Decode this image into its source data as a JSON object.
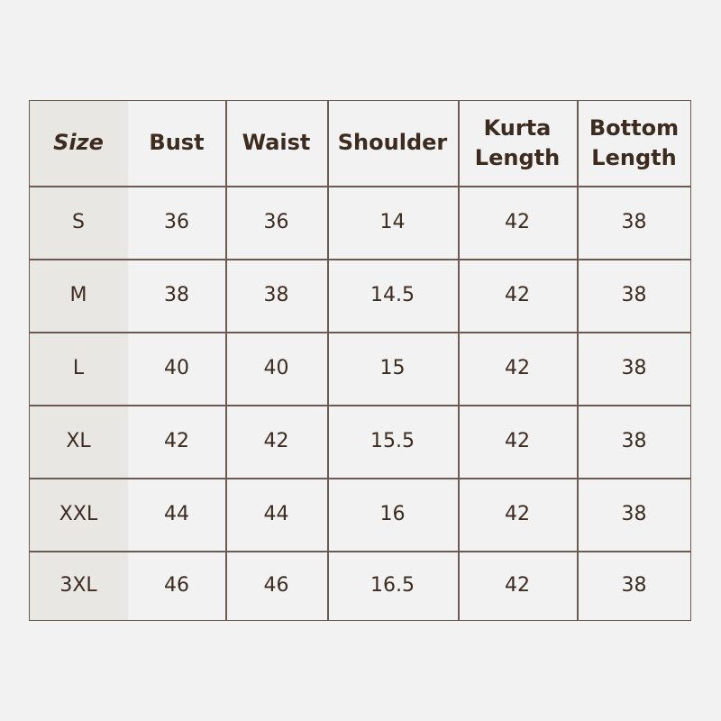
{
  "colors": {
    "background": "#f2f2f2",
    "size_column": "#e9e7e3",
    "border": "#6a5a52",
    "text": "#3d2b1f"
  },
  "headers": [
    "Size",
    "Bust",
    "Waist",
    "Shoulder",
    "Kurta Length",
    "Bottom Length"
  ],
  "rows": [
    [
      "S",
      "36",
      "36",
      "14",
      "42",
      "38"
    ],
    [
      "M",
      "38",
      "38",
      "14.5",
      "42",
      "38"
    ],
    [
      "L",
      "40",
      "40",
      "15",
      "42",
      "38"
    ],
    [
      "XL",
      "42",
      "42",
      "15.5",
      "42",
      "38"
    ],
    [
      "XXL",
      "44",
      "44",
      "16",
      "42",
      "38"
    ],
    [
      "3XL",
      "46",
      "46",
      "16.5",
      "42",
      "38"
    ]
  ]
}
